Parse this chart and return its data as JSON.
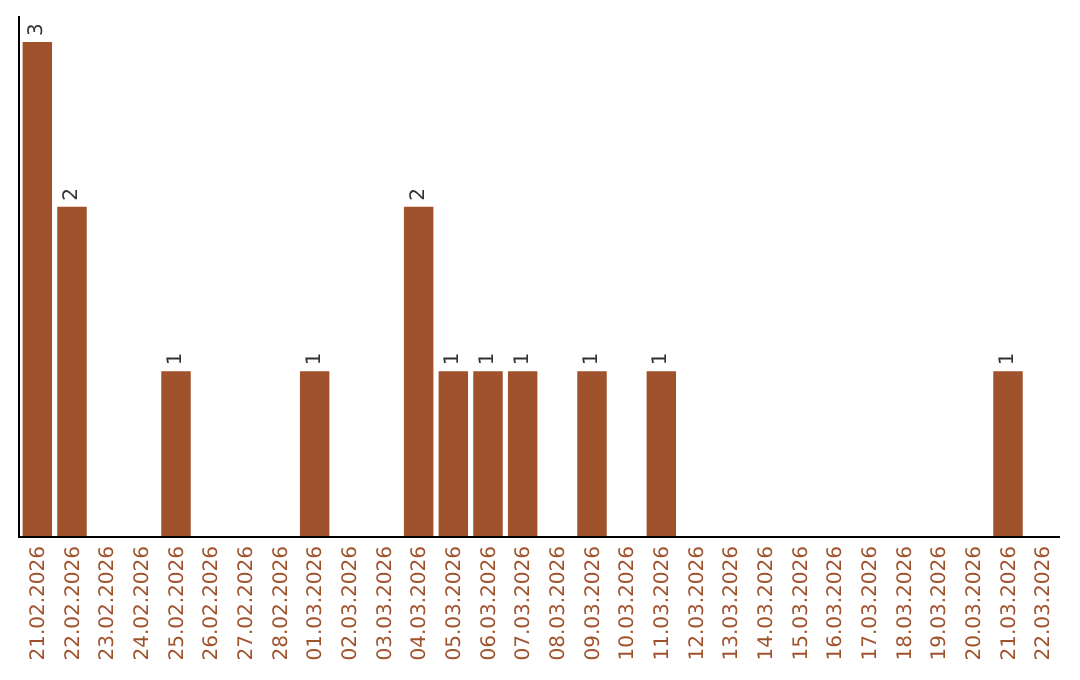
{
  "chart_data": {
    "type": "bar",
    "categories": [
      "21.02.2026",
      "22.02.2026",
      "23.02.2026",
      "24.02.2026",
      "25.02.2026",
      "26.02.2026",
      "27.02.2026",
      "28.02.2026",
      "01.03.2026",
      "02.03.2026",
      "03.03.2026",
      "04.03.2026",
      "05.03.2026",
      "06.03.2026",
      "07.03.2026",
      "08.03.2026",
      "09.03.2026",
      "10.03.2026",
      "11.03.2026",
      "12.03.2026",
      "13.03.2026",
      "14.03.2026",
      "15.03.2026",
      "16.03.2026",
      "17.03.2026",
      "18.03.2026",
      "19.03.2026",
      "20.03.2026",
      "21.03.2026",
      "22.03.2026"
    ],
    "values": [
      3,
      2,
      0,
      0,
      1,
      0,
      0,
      0,
      1,
      0,
      0,
      2,
      1,
      1,
      1,
      0,
      1,
      0,
      1,
      0,
      0,
      0,
      0,
      0,
      0,
      0,
      0,
      0,
      1,
      0
    ],
    "value_labels": [
      "3",
      "2",
      null,
      null,
      "1",
      null,
      null,
      null,
      "1",
      null,
      null,
      "2",
      "1",
      "1",
      "1",
      null,
      "1",
      null,
      "1",
      null,
      null,
      null,
      null,
      null,
      null,
      null,
      null,
      null,
      "1",
      null
    ],
    "color": "#a0522d",
    "tick_labels": "x",
    "grid": false,
    "legend": false
  }
}
